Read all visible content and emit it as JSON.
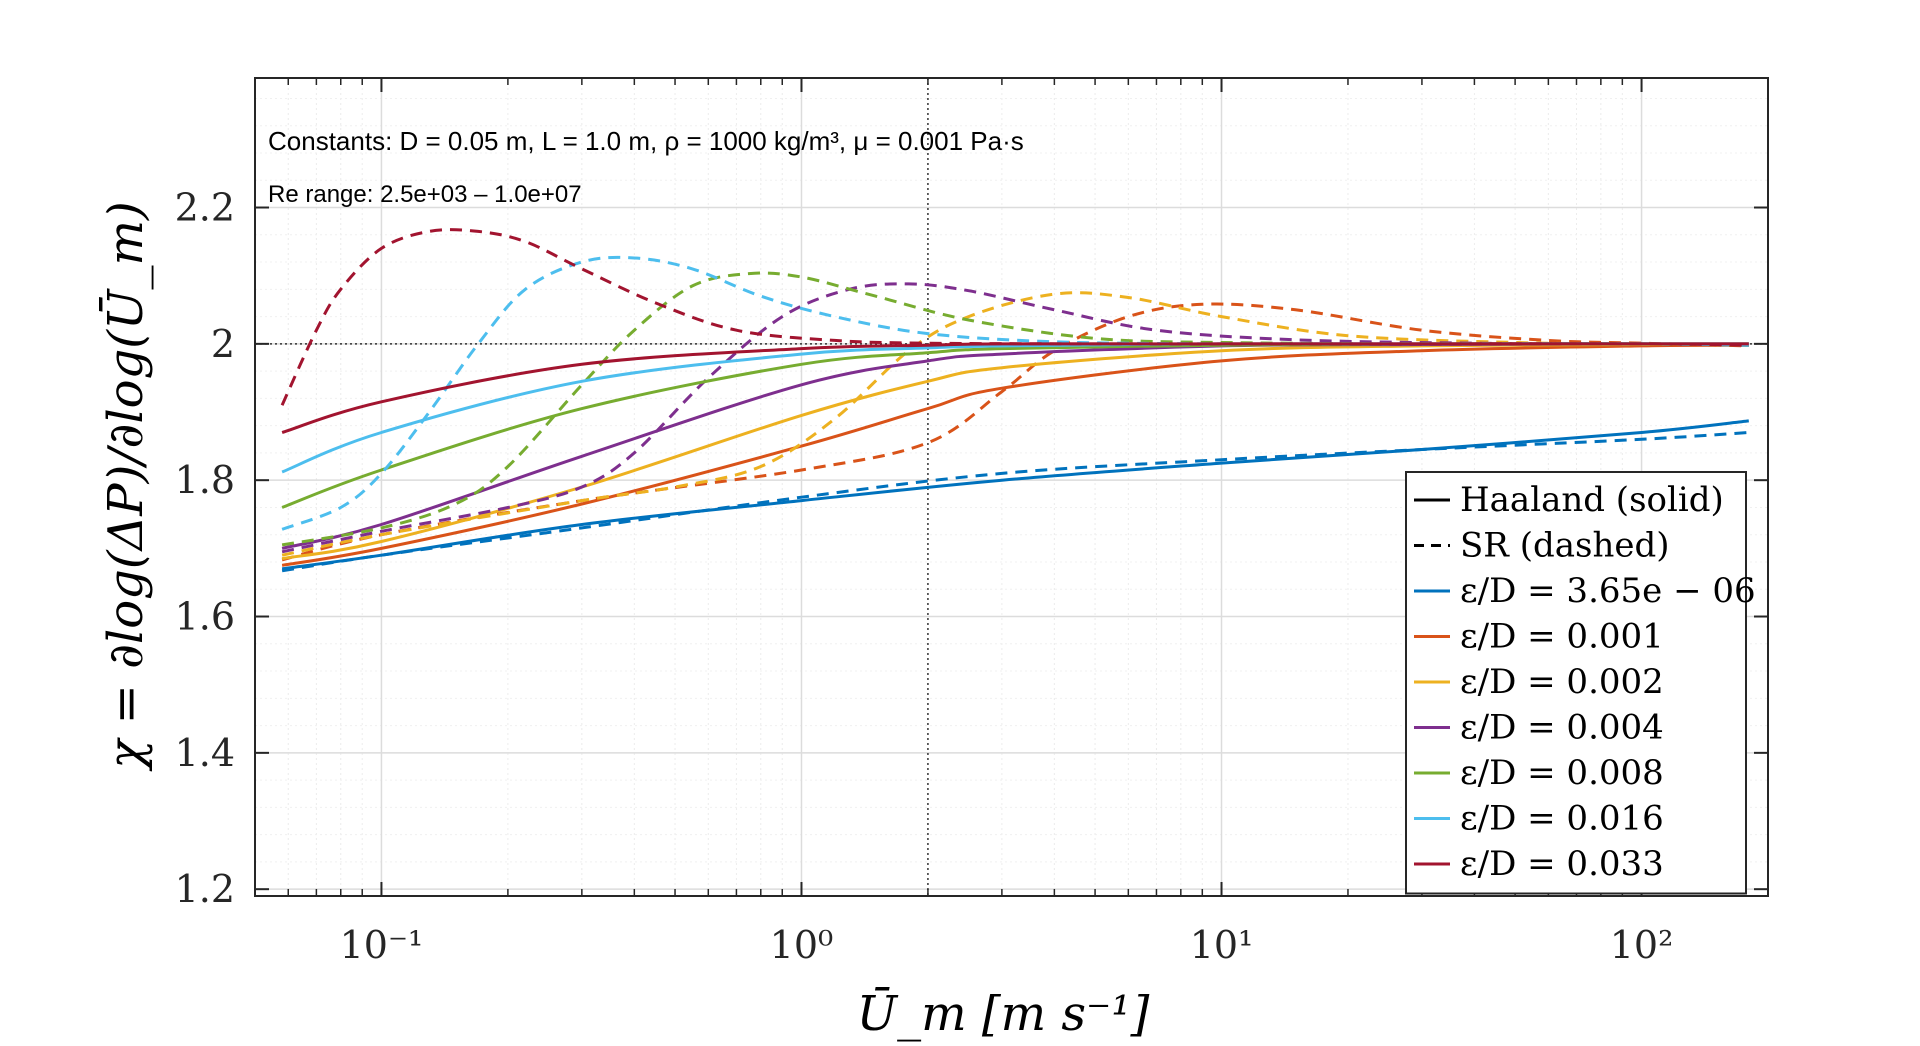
{
  "chart_data": {
    "type": "line",
    "title": "",
    "xlabel": "Ū_m [m s⁻¹]",
    "ylabel": "χ = ∂log(ΔP)/∂log(Ū_m)",
    "xscale": "log",
    "xlim": [
      0.05,
      200
    ],
    "ylim": [
      1.19,
      2.39
    ],
    "x_ticks": [
      0.1,
      1,
      10,
      100
    ],
    "x_tick_labels": [
      "10⁻¹",
      "10⁰",
      "10¹",
      "10²"
    ],
    "y_ticks": [
      1.2,
      1.4,
      1.6,
      1.8,
      2.0,
      2.2
    ],
    "y_tick_labels": [
      "1.2",
      "1.4",
      "1.6",
      "1.8",
      "2",
      "2.2"
    ],
    "grid": true,
    "reference_lines": {
      "y": 2.0,
      "x": 2.0
    },
    "annotations": [
      "Constants:  D = 0.05 m,  L = 1.0 m,  ρ = 1000 kg/m³, μ = 0.001 Pa·s",
      "Re range: 2.5e+03 – 1.0e+07"
    ],
    "legend": {
      "placement": "bottom-right",
      "entries": [
        {
          "label": "Haaland (solid)",
          "style": "solid",
          "color": "#000000"
        },
        {
          "label": "SR (dashed)",
          "style": "dashed",
          "color": "#000000"
        },
        {
          "label": "ε/D = 3.65e − 06",
          "style": "solid",
          "color": "#0072BD"
        },
        {
          "label": "ε/D = 0.001",
          "style": "solid",
          "color": "#D95319"
        },
        {
          "label": "ε/D = 0.002",
          "style": "solid",
          "color": "#EDB120"
        },
        {
          "label": "ε/D = 0.004",
          "style": "solid",
          "color": "#7E2F8E"
        },
        {
          "label": "ε/D = 0.008",
          "style": "solid",
          "color": "#77AC30"
        },
        {
          "label": "ε/D = 0.016",
          "style": "solid",
          "color": "#4DBEEE"
        },
        {
          "label": "ε/D = 0.033",
          "style": "solid",
          "color": "#A2142F"
        }
      ]
    },
    "series": [
      {
        "name": "ε/D = 3.65e − 06",
        "method": "Haaland",
        "style": "solid",
        "color": "#0072BD",
        "x": [
          0.058,
          0.1,
          0.3,
          1,
          3,
          10,
          30,
          100,
          180
        ],
        "y": [
          1.67,
          1.69,
          1.735,
          1.77,
          1.8,
          1.825,
          1.845,
          1.87,
          1.887
        ]
      },
      {
        "name": "ε/D = 3.65e − 06",
        "method": "SR",
        "style": "dashed",
        "color": "#0072BD",
        "x": [
          0.058,
          0.1,
          0.3,
          1,
          3,
          10,
          30,
          100,
          180
        ],
        "y": [
          1.667,
          1.69,
          1.73,
          1.775,
          1.81,
          1.83,
          1.845,
          1.86,
          1.87
        ]
      },
      {
        "name": "ε/D = 0.001",
        "method": "Haaland",
        "style": "solid",
        "color": "#D95319",
        "x": [
          0.058,
          0.1,
          0.3,
          1,
          2,
          3,
          10,
          30,
          100,
          180
        ],
        "y": [
          1.675,
          1.7,
          1.765,
          1.85,
          1.905,
          1.935,
          1.975,
          1.99,
          1.997,
          1.998
        ]
      },
      {
        "name": "ε/D = 0.001",
        "method": "SR",
        "style": "dashed",
        "color": "#D95319",
        "x": [
          0.058,
          0.1,
          0.3,
          1,
          2,
          3,
          4,
          6,
          9,
          15,
          30,
          60,
          100,
          180
        ],
        "y": [
          1.683,
          1.72,
          1.77,
          1.815,
          1.855,
          1.93,
          1.99,
          2.04,
          2.058,
          2.05,
          2.02,
          2.005,
          2.001,
          1.997
        ]
      },
      {
        "name": "ε/D = 0.002",
        "method": "Haaland",
        "style": "solid",
        "color": "#EDB120",
        "x": [
          0.058,
          0.1,
          0.3,
          1,
          2,
          3,
          10,
          30,
          100,
          180
        ],
        "y": [
          1.685,
          1.71,
          1.79,
          1.895,
          1.945,
          1.965,
          1.99,
          1.997,
          1.999,
          2.0
        ]
      },
      {
        "name": "ε/D = 0.002",
        "method": "SR",
        "style": "dashed",
        "color": "#EDB120",
        "x": [
          0.058,
          0.1,
          0.3,
          0.5,
          0.8,
          1.2,
          1.8,
          2.5,
          4,
          6,
          10,
          20,
          50,
          100,
          180
        ],
        "y": [
          1.69,
          1.72,
          1.77,
          1.79,
          1.82,
          1.89,
          1.99,
          2.04,
          2.073,
          2.068,
          2.04,
          2.012,
          2.002,
          2.0,
          1.998
        ]
      },
      {
        "name": "ε/D = 0.004",
        "method": "Haaland",
        "style": "solid",
        "color": "#7E2F8E",
        "x": [
          0.058,
          0.1,
          0.3,
          1,
          2,
          3,
          10,
          30,
          100,
          180
        ],
        "y": [
          1.7,
          1.735,
          1.835,
          1.94,
          1.975,
          1.985,
          1.997,
          1.999,
          2.0,
          2.0
        ]
      },
      {
        "name": "ε/D = 0.004",
        "method": "SR",
        "style": "dashed",
        "color": "#7E2F8E",
        "x": [
          0.058,
          0.1,
          0.2,
          0.3,
          0.4,
          0.6,
          0.9,
          1.3,
          1.8,
          2.5,
          4,
          7,
          15,
          40,
          100,
          180
        ],
        "y": [
          1.695,
          1.725,
          1.76,
          1.79,
          1.84,
          1.95,
          2.04,
          2.08,
          2.088,
          2.078,
          2.05,
          2.02,
          2.006,
          2.001,
          2.0,
          1.998
        ]
      },
      {
        "name": "ε/D = 0.008",
        "method": "Haaland",
        "style": "solid",
        "color": "#77AC30",
        "x": [
          0.058,
          0.1,
          0.3,
          1,
          2,
          3,
          10,
          30,
          100,
          180
        ],
        "y": [
          1.76,
          1.815,
          1.905,
          1.97,
          1.987,
          1.993,
          1.998,
          2.0,
          2.0,
          2.0
        ]
      },
      {
        "name": "ε/D = 0.008",
        "method": "SR",
        "style": "dashed",
        "color": "#77AC30",
        "x": [
          0.058,
          0.1,
          0.15,
          0.2,
          0.3,
          0.4,
          0.55,
          0.75,
          1.0,
          1.5,
          2.5,
          5,
          10,
          30,
          100,
          180
        ],
        "y": [
          1.705,
          1.73,
          1.765,
          1.82,
          1.94,
          2.02,
          2.085,
          2.103,
          2.098,
          2.07,
          2.035,
          2.008,
          2.002,
          2.0,
          2.0,
          1.998
        ]
      },
      {
        "name": "ε/D = 0.016",
        "method": "Haaland",
        "style": "solid",
        "color": "#4DBEEE",
        "x": [
          0.058,
          0.1,
          0.3,
          1,
          2,
          3,
          10,
          30,
          100,
          180
        ],
        "y": [
          1.812,
          1.87,
          1.945,
          1.985,
          1.994,
          1.997,
          2.0,
          2.0,
          2.0,
          2.0
        ]
      },
      {
        "name": "ε/D = 0.016",
        "method": "SR",
        "style": "dashed",
        "color": "#4DBEEE",
        "x": [
          0.058,
          0.08,
          0.1,
          0.13,
          0.17,
          0.22,
          0.3,
          0.4,
          0.55,
          0.8,
          1.2,
          2,
          4,
          10,
          30,
          100,
          180
        ],
        "y": [
          1.728,
          1.76,
          1.81,
          1.9,
          2.0,
          2.08,
          2.12,
          2.126,
          2.11,
          2.07,
          2.04,
          2.015,
          2.003,
          2.0,
          2.0,
          2.0,
          1.998
        ]
      },
      {
        "name": "ε/D = 0.033",
        "method": "Haaland",
        "style": "solid",
        "color": "#A2142F",
        "x": [
          0.058,
          0.1,
          0.3,
          1,
          2,
          3,
          10,
          30,
          100,
          180
        ],
        "y": [
          1.87,
          1.915,
          1.97,
          1.993,
          1.998,
          2.0,
          2.0,
          2.0,
          2.0,
          2.0
        ]
      },
      {
        "name": "ε/D = 0.033",
        "method": "SR",
        "style": "dashed",
        "color": "#A2142F",
        "x": [
          0.058,
          0.07,
          0.08,
          0.1,
          0.13,
          0.17,
          0.22,
          0.3,
          0.45,
          0.7,
          1.2,
          2,
          5,
          20,
          100,
          180
        ],
        "y": [
          1.91,
          2.02,
          2.08,
          2.14,
          2.165,
          2.165,
          2.15,
          2.11,
          2.06,
          2.02,
          2.005,
          2.001,
          2.0,
          2.0,
          2.0,
          1.998
        ]
      }
    ]
  }
}
